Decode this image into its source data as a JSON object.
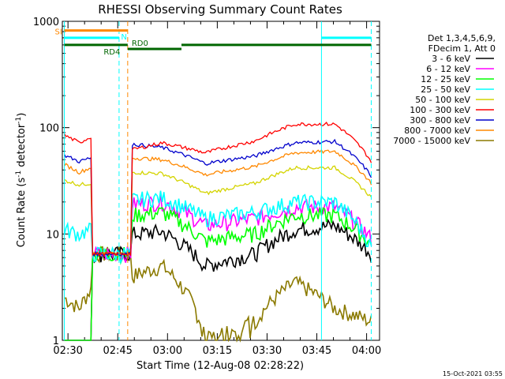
{
  "chart_data": {
    "type": "line",
    "title": "RHESSI Observing Summary Count Rates",
    "xlabel": "Start Time (12-Aug-08 02:28:22)",
    "ylabel_parts": [
      "Count Rate (s",
      "-1",
      " detector",
      "-1",
      ")"
    ],
    "yscale": "log",
    "ylim": [
      1,
      1000
    ],
    "xlim": [
      -0.1,
      95.5
    ],
    "y_ticks": [
      {
        "value": 1,
        "label": "1"
      },
      {
        "value": 10,
        "label": "10"
      },
      {
        "value": 100,
        "label": "100"
      },
      {
        "value": 1000,
        "label": "1000"
      }
    ],
    "x_ticks": [
      {
        "value": 1.6,
        "label": "02:30"
      },
      {
        "value": 16.6,
        "label": "02:45"
      },
      {
        "value": 31.6,
        "label": "03:00"
      },
      {
        "value": 46.6,
        "label": "03:15"
      },
      {
        "value": 61.6,
        "label": "03:30"
      },
      {
        "value": 76.6,
        "label": "03:45"
      },
      {
        "value": 91.6,
        "label": "04:00"
      }
    ],
    "legend_header": [
      "Det 1,3,4,5,6,9,",
      "FDecim 1, Att 0"
    ],
    "series": [
      {
        "name": "3 - 6 keV",
        "color": "#000000",
        "gap_floor": 6.5,
        "base": [
          [
            0.5,
            0.0
          ],
          [
            5.0,
            0.0
          ],
          [
            8.5,
            0.0
          ],
          [
            21.0,
            10.0
          ],
          [
            30.0,
            10.5
          ],
          [
            43.0,
            5.0
          ],
          [
            58.0,
            6.5
          ],
          [
            70.0,
            11.0
          ],
          [
            82.0,
            12.0
          ],
          [
            93.0,
            6.5
          ]
        ]
      },
      {
        "name": "6 - 12 keV",
        "color": "#ff00ff",
        "gap_floor": 6.5,
        "base": [
          [
            0.5,
            0.0
          ],
          [
            5.0,
            0.0
          ],
          [
            8.5,
            0.0
          ],
          [
            21.0,
            19.0
          ],
          [
            30.0,
            20.0
          ],
          [
            43.0,
            12.0
          ],
          [
            58.0,
            14.0
          ],
          [
            70.0,
            18.0
          ],
          [
            82.0,
            18.0
          ],
          [
            93.0,
            9.0
          ]
        ]
      },
      {
        "name": "12 - 25 keV",
        "color": "#00ff00",
        "gap_floor": 6.5,
        "base": [
          [
            0.5,
            0.0
          ],
          [
            5.0,
            0.0
          ],
          [
            8.5,
            0.0
          ],
          [
            21.0,
            15.0
          ],
          [
            30.0,
            16.0
          ],
          [
            43.0,
            8.5
          ],
          [
            58.0,
            10.0
          ],
          [
            70.0,
            15.0
          ],
          [
            82.0,
            15.0
          ],
          [
            93.0,
            8.0
          ]
        ]
      },
      {
        "name": "25 - 50 keV",
        "color": "#00ffff",
        "gap_floor": 6.5,
        "base": [
          [
            0.5,
            11.0
          ],
          [
            5.0,
            10.0
          ],
          [
            8.5,
            11.0
          ],
          [
            21.0,
            21.0
          ],
          [
            30.0,
            22.0
          ],
          [
            43.0,
            14.0
          ],
          [
            58.0,
            16.0
          ],
          [
            70.0,
            20.0
          ],
          [
            82.0,
            20.0
          ],
          [
            93.0,
            7.5
          ]
        ]
      },
      {
        "name": "50 - 100 keV",
        "color": "#d4d400",
        "gap_floor": 6.5,
        "base": [
          [
            0.5,
            32.0
          ],
          [
            5.0,
            29.0
          ],
          [
            8.5,
            30.0
          ],
          [
            21.0,
            38.0
          ],
          [
            30.0,
            37.0
          ],
          [
            43.0,
            24.0
          ],
          [
            58.0,
            30.0
          ],
          [
            70.0,
            42.0
          ],
          [
            82.0,
            42.0
          ],
          [
            93.0,
            22.0
          ]
        ]
      },
      {
        "name": "100 - 300 keV",
        "color": "#ff0000",
        "gap_floor": 6.5,
        "base": [
          [
            0.5,
            85.0
          ],
          [
            5.0,
            72.0
          ],
          [
            8.5,
            82.0
          ],
          [
            21.0,
            62.0
          ],
          [
            30.0,
            72.0
          ],
          [
            43.0,
            58.0
          ],
          [
            58.0,
            75.0
          ],
          [
            70.0,
            108.0
          ],
          [
            82.0,
            108.0
          ],
          [
            93.0,
            48.0
          ]
        ]
      },
      {
        "name": "300 - 800 keV",
        "color": "#0000cc",
        "gap_floor": 6.5,
        "base": [
          [
            0.5,
            55.0
          ],
          [
            5.0,
            48.0
          ],
          [
            8.5,
            52.0
          ],
          [
            21.0,
            70.0
          ],
          [
            30.0,
            65.0
          ],
          [
            43.0,
            46.0
          ],
          [
            58.0,
            54.0
          ],
          [
            70.0,
            72.0
          ],
          [
            82.0,
            74.0
          ],
          [
            93.0,
            35.0
          ]
        ]
      },
      {
        "name": "800 - 7000 keV",
        "color": "#ff8800",
        "gap_floor": 6.5,
        "base": [
          [
            0.5,
            45.0
          ],
          [
            5.0,
            38.0
          ],
          [
            8.5,
            42.0
          ],
          [
            21.0,
            52.0
          ],
          [
            30.0,
            50.0
          ],
          [
            43.0,
            36.0
          ],
          [
            58.0,
            43.0
          ],
          [
            70.0,
            58.0
          ],
          [
            82.0,
            60.0
          ],
          [
            93.0,
            30.0
          ]
        ]
      },
      {
        "name": "7000 - 15000 keV",
        "color": "#8b7a00",
        "gap_floor": 6.5,
        "base": [
          [
            0.5,
            2.5
          ],
          [
            5.0,
            2.0
          ],
          [
            8.5,
            3.0
          ],
          [
            21.0,
            4.0
          ],
          [
            30.0,
            5.0
          ],
          [
            43.0,
            1.0
          ],
          [
            58.0,
            1.5
          ],
          [
            70.0,
            3.5
          ],
          [
            82.0,
            2.0
          ],
          [
            93.0,
            1.5
          ]
        ]
      }
    ],
    "flag_bars": [
      {
        "label": "SI",
        "color": "#ff8800",
        "y": 820,
        "x_start": 0.5,
        "x_end": 19.6
      },
      {
        "label": "RD4",
        "color": "#006600",
        "y": 600,
        "x_start": 0.5,
        "x_end": 19.6
      },
      {
        "label": "RD0",
        "color": "#006600",
        "y": 550,
        "x_start": 19.6,
        "x_end": 35.8
      },
      {
        "label": "",
        "color": "#006600",
        "y": 600,
        "x_start": 35.8,
        "x_end": 93.0
      }
    ],
    "cyan_top_bars": [
      {
        "x_start": 0.5,
        "x_end": 17.0,
        "y": 700
      },
      {
        "x_start": 78.0,
        "x_end": 93.0,
        "y": 700
      }
    ],
    "vlines": [
      {
        "x": 0.5,
        "color": "#00ffff",
        "style": "solid"
      },
      {
        "x": 17.0,
        "color": "#00ffff",
        "style": "dashed"
      },
      {
        "x": 19.6,
        "color": "#ff8800",
        "style": "dashed"
      },
      {
        "x": 78.0,
        "color": "#00ffff",
        "style": "solid"
      },
      {
        "x": 93.0,
        "color": "#00ffff",
        "style": "dashed"
      }
    ],
    "annotations": [
      {
        "text": "N",
        "color": "#00ffff",
        "x": 17.6,
        "y": 720
      }
    ],
    "gap_range": [
      8.5,
      21.0
    ]
  },
  "footer": {
    "timestamp": "15-Oct-2021 03:55"
  }
}
